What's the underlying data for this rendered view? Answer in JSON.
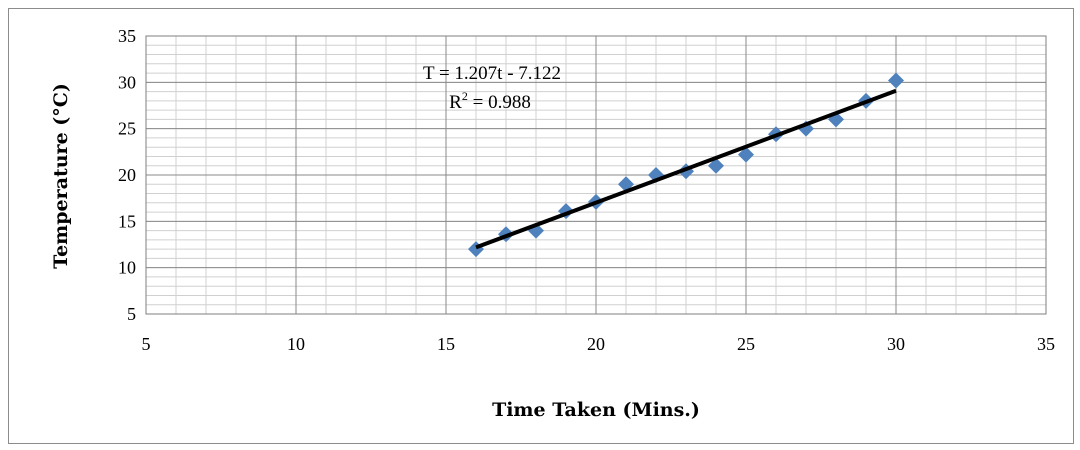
{
  "chart_data": {
    "type": "scatter",
    "xlabel": "Time Taken (Mins.)",
    "ylabel": "Temperature (°C)",
    "xlim": [
      5,
      35
    ],
    "ylim": [
      5,
      35
    ],
    "xticks": [
      5,
      10,
      15,
      20,
      25,
      30,
      35
    ],
    "yticks": [
      5,
      10,
      15,
      20,
      25,
      30,
      35
    ],
    "x_minor_step": 1,
    "y_minor_step": 1,
    "grid": true,
    "series": [
      {
        "marker": "diamond",
        "color": "#4f81bd",
        "points": [
          {
            "x": 16,
            "y": 12.0
          },
          {
            "x": 17,
            "y": 13.6
          },
          {
            "x": 18,
            "y": 14.0
          },
          {
            "x": 19,
            "y": 16.1
          },
          {
            "x": 20,
            "y": 17.1
          },
          {
            "x": 21,
            "y": 19.0
          },
          {
            "x": 22,
            "y": 20.0
          },
          {
            "x": 23,
            "y": 20.4
          },
          {
            "x": 24,
            "y": 21.0
          },
          {
            "x": 25,
            "y": 22.2
          },
          {
            "x": 26,
            "y": 24.4
          },
          {
            "x": 27,
            "y": 25.0
          },
          {
            "x": 28,
            "y": 26.0
          },
          {
            "x": 29,
            "y": 28.0
          },
          {
            "x": 30,
            "y": 30.2
          }
        ]
      }
    ],
    "trendline": {
      "color": "#000000",
      "slope": 1.207,
      "intercept": -7.122,
      "x_range": [
        16,
        30
      ],
      "equation_line1": "T = 1.207t - 7.122",
      "equation_line2_prefix": "R",
      "equation_line2_sup": "2",
      "equation_line2_suffix": " = 0.988"
    }
  }
}
